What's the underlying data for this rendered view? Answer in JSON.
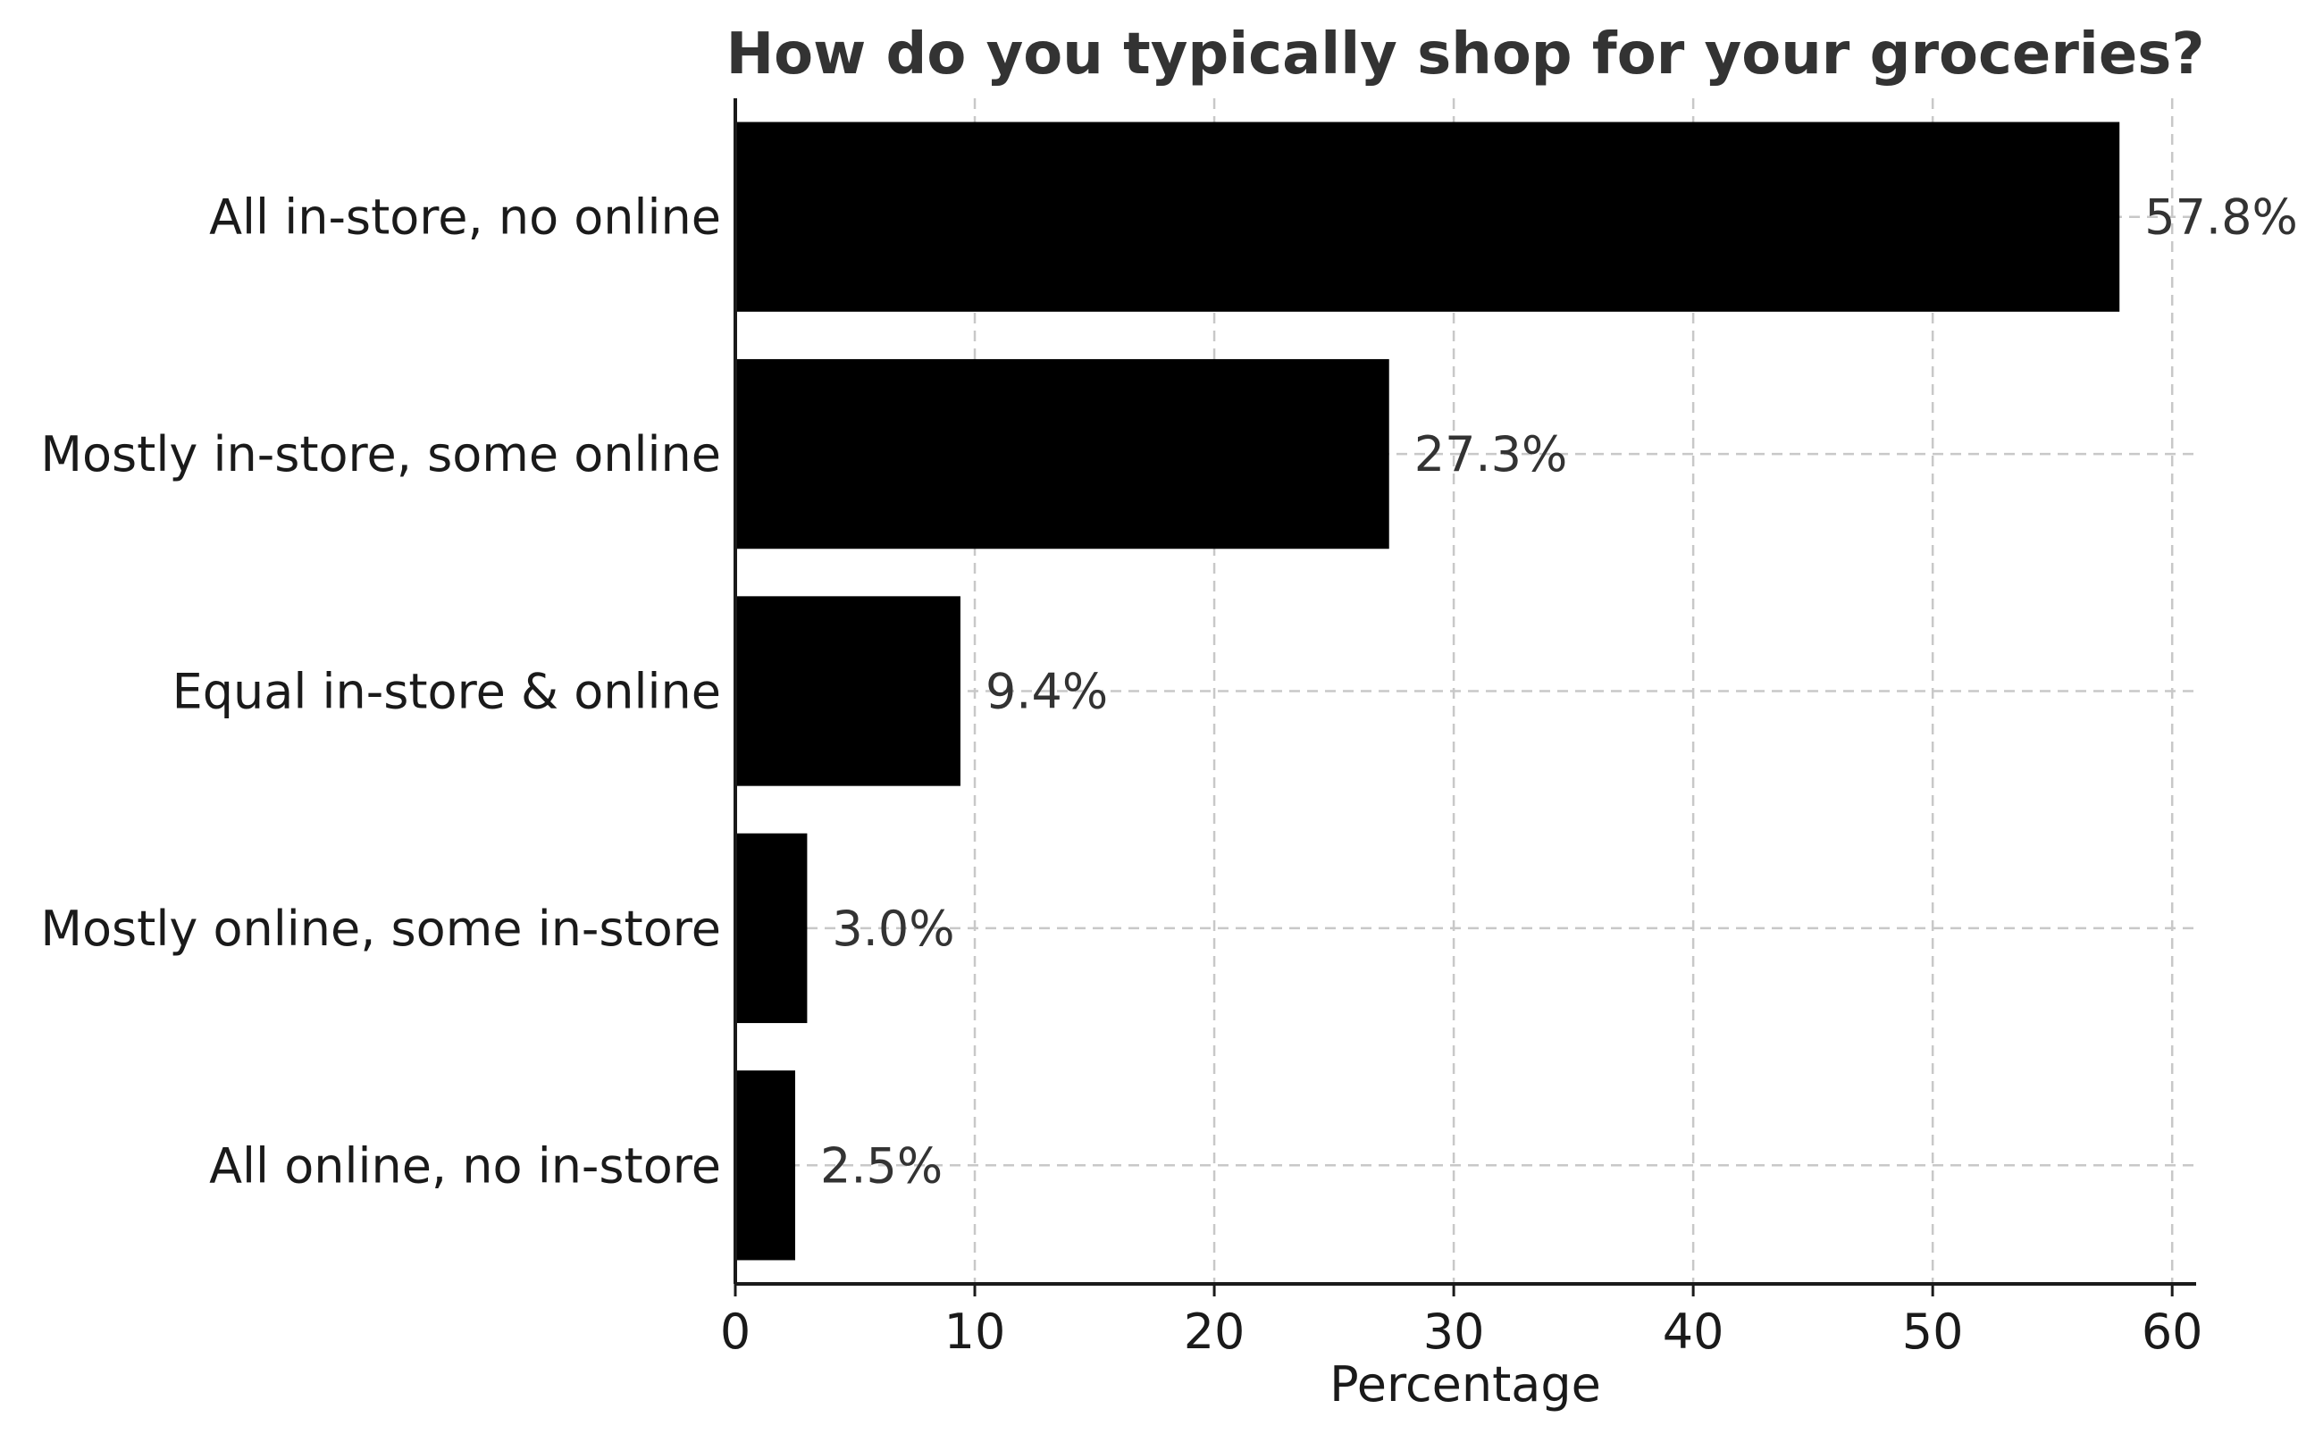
{
  "chart_data": {
    "type": "bar",
    "orientation": "horizontal",
    "title": "How do you typically shop for your groceries?",
    "xlabel": "Percentage",
    "ylabel": "",
    "xlim": [
      0,
      61
    ],
    "xticks": [
      0,
      10,
      20,
      30,
      40,
      50,
      60
    ],
    "grid": true,
    "categories": [
      "All in-store, no online",
      "Mostly in-store, some online",
      "Equal in-store & online",
      "Mostly online, some in-store",
      "All online, no in-store"
    ],
    "values": [
      57.8,
      27.3,
      9.4,
      3.0,
      2.5
    ],
    "data_labels": [
      "57.8%",
      "27.3%",
      "9.4%",
      "3.0%",
      "2.5%"
    ],
    "bar_color": "#000000"
  }
}
